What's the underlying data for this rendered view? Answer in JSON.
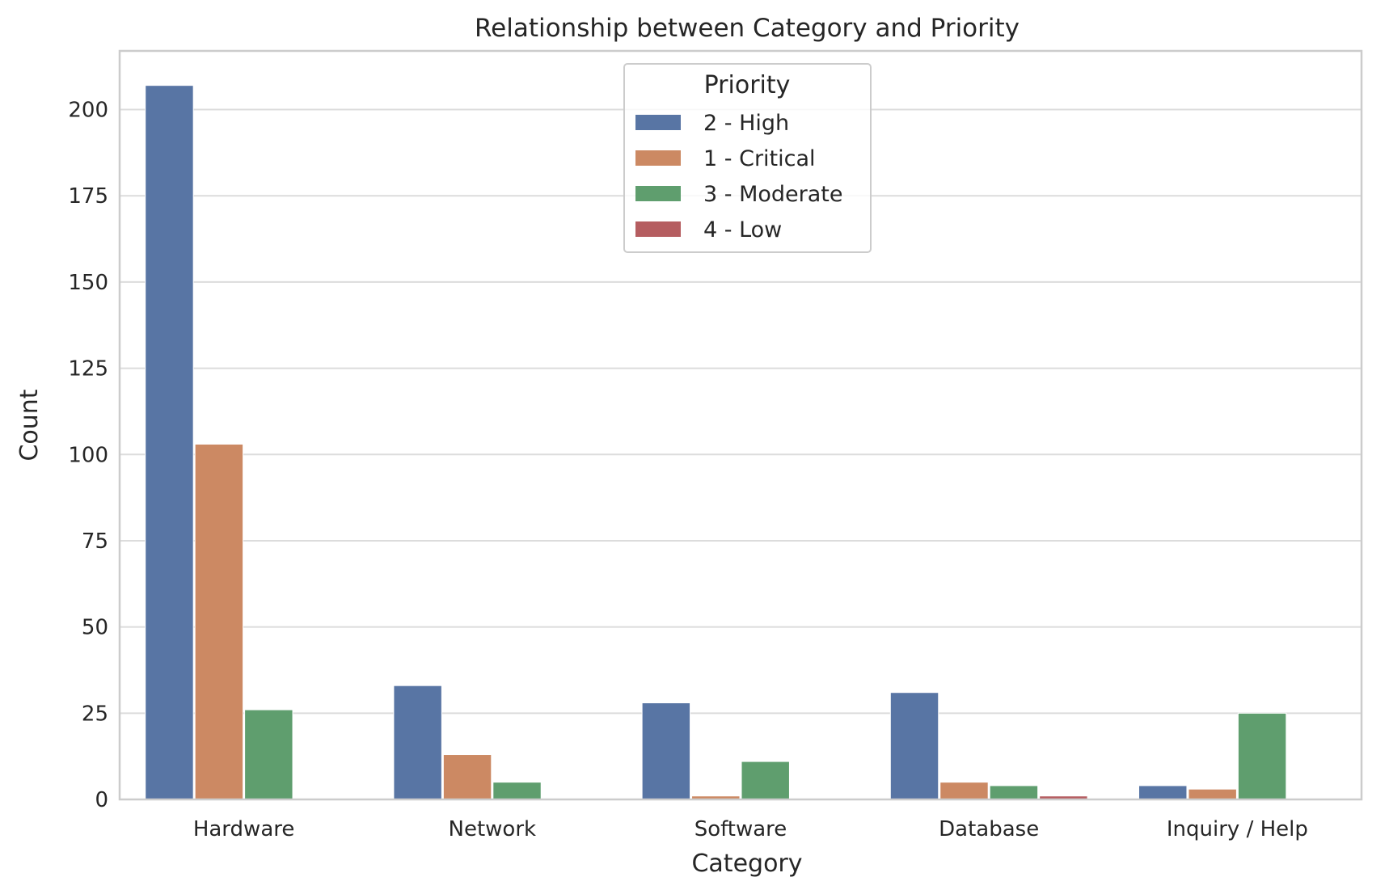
{
  "chart_data": {
    "type": "bar",
    "title": "Relationship between Category and Priority",
    "xlabel": "Category",
    "ylabel": "Count",
    "categories": [
      "Hardware",
      "Network",
      "Software",
      "Database",
      "Inquiry / Help"
    ],
    "ylim": [
      0,
      217
    ],
    "yticks": [
      0,
      25,
      50,
      75,
      100,
      125,
      150,
      175,
      200
    ],
    "grid": true,
    "legend": {
      "title": "Priority",
      "placement": "top-center"
    },
    "series": [
      {
        "name": "2 - High",
        "color": "#5875a4",
        "values": [
          207,
          33,
          28,
          31,
          4
        ]
      },
      {
        "name": "1 - Critical",
        "color": "#cc8963",
        "values": [
          103,
          13,
          1,
          5,
          3
        ]
      },
      {
        "name": "3 - Moderate",
        "color": "#5f9e6e",
        "values": [
          26,
          5,
          11,
          4,
          25
        ]
      },
      {
        "name": "4 - Low",
        "color": "#b55d60",
        "values": [
          0,
          0,
          0,
          1,
          0
        ]
      }
    ]
  }
}
